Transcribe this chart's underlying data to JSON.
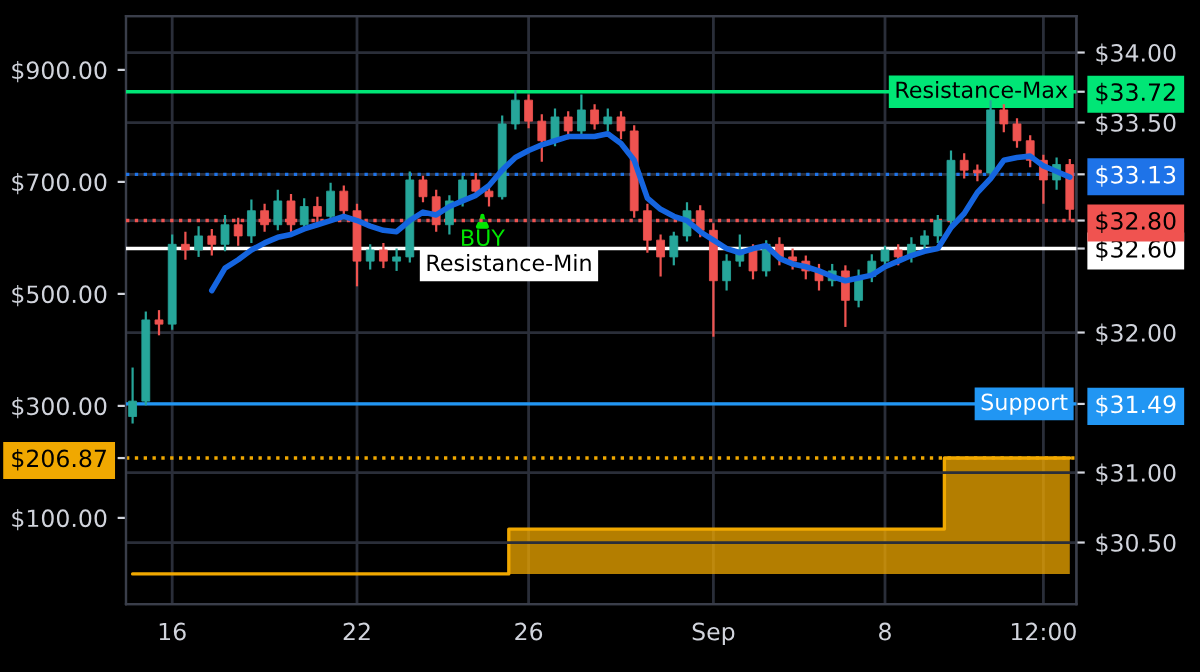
{
  "chart_data": {
    "type": "candlestick",
    "categories": [
      null,
      null,
      null,
      "16",
      null,
      null,
      null,
      null,
      null,
      null,
      null,
      null,
      null,
      null,
      null,
      null,
      null,
      "22",
      null,
      null,
      null,
      null,
      null,
      null,
      null,
      null,
      null,
      null,
      null,
      null,
      "26",
      null,
      null,
      null,
      null,
      null,
      null,
      null,
      null,
      null,
      null,
      null,
      null,
      null,
      "Sep",
      null,
      null,
      null,
      null,
      null,
      null,
      null,
      null,
      null,
      null,
      null,
      null,
      "8",
      null,
      null,
      null,
      null,
      null,
      null,
      null,
      null,
      null,
      null,
      null,
      "12:00",
      null,
      null
    ],
    "ylim": [
      -54,
      996
    ],
    "yticks": [
      {
        "value": 100,
        "label": "$100.00"
      },
      {
        "value": 206.87,
        "label": "$206.87"
      },
      {
        "value": 300,
        "label": "$300.00"
      },
      {
        "value": 500,
        "label": "$500.00"
      },
      {
        "value": 700,
        "label": "$700.00"
      },
      {
        "value": 900,
        "label": "$900.00"
      }
    ],
    "y2lim": [
      30.06,
      34.26
    ],
    "y2ticks": [
      {
        "value": 30.5,
        "label": "$30.50"
      },
      {
        "value": 31.0,
        "label": "$31.00"
      },
      {
        "value": 31.49,
        "label": "$31.49"
      },
      {
        "value": 32.0,
        "label": "$32.00"
      },
      {
        "value": 32.6,
        "label": "$32.60"
      },
      {
        "value": 32.8,
        "label": "$32.80"
      },
      {
        "value": 33.13,
        "label": "$33.13"
      },
      {
        "value": 33.5,
        "label": "$33.50"
      },
      {
        "value": 33.72,
        "label": "$33.72"
      },
      {
        "value": 34.0,
        "label": "$34.00"
      }
    ],
    "grid": true,
    "series": [
      {
        "type": "step",
        "axis": "y",
        "color": "#f0a800",
        "values": [
          0,
          0,
          0,
          0,
          0,
          0,
          0,
          0,
          0,
          0,
          0,
          0,
          0,
          0,
          0,
          0,
          0,
          0,
          0,
          0,
          0,
          0,
          0,
          0,
          0,
          0,
          0,
          0,
          0,
          80,
          80,
          80,
          80,
          80,
          80,
          80,
          80,
          80,
          80,
          80,
          80,
          80,
          80,
          80,
          80,
          80,
          80,
          80,
          80,
          80,
          80,
          80,
          80,
          80,
          80,
          80,
          80,
          80,
          80,
          80,
          80,
          80,
          206.87,
          206.87,
          206.87,
          206.87,
          206.87,
          206.87,
          206.87,
          206.87,
          206.87,
          206.87
        ]
      },
      {
        "type": "candlestick",
        "axis": "y2",
        "ohlc": [
          [
            31.4,
            31.75,
            31.35,
            31.51
          ],
          [
            31.51,
            32.15,
            31.48,
            32.09
          ],
          [
            32.09,
            32.16,
            31.98,
            32.06
          ],
          [
            32.06,
            32.7,
            32.02,
            32.63
          ],
          [
            32.63,
            32.72,
            32.52,
            32.59
          ],
          [
            32.59,
            32.76,
            32.54,
            32.69
          ],
          [
            32.69,
            32.74,
            32.55,
            32.63
          ],
          [
            32.63,
            32.84,
            32.58,
            32.77
          ],
          [
            32.77,
            32.82,
            32.62,
            32.69
          ],
          [
            32.69,
            32.95,
            32.64,
            32.87
          ],
          [
            32.87,
            32.92,
            32.72,
            32.77
          ],
          [
            32.77,
            33.02,
            32.73,
            32.94
          ],
          [
            32.94,
            32.99,
            32.7,
            32.77
          ],
          [
            32.77,
            32.96,
            32.74,
            32.9
          ],
          [
            32.9,
            32.97,
            32.78,
            32.83
          ],
          [
            32.83,
            33.07,
            32.8,
            33.01
          ],
          [
            33.01,
            33.05,
            32.84,
            32.87
          ],
          [
            32.87,
            32.92,
            32.33,
            32.51
          ],
          [
            32.51,
            32.63,
            32.45,
            32.59
          ],
          [
            32.59,
            32.64,
            32.46,
            32.51
          ],
          [
            32.51,
            32.6,
            32.44,
            32.54
          ],
          [
            32.54,
            33.15,
            32.5,
            33.09
          ],
          [
            33.09,
            33.12,
            32.93,
            32.97
          ],
          [
            32.97,
            33.02,
            32.72,
            32.77
          ],
          [
            32.77,
            32.98,
            32.7,
            32.94
          ],
          [
            32.94,
            33.12,
            32.9,
            33.09
          ],
          [
            33.09,
            33.14,
            32.97,
            33.01
          ],
          [
            33.01,
            33.06,
            32.9,
            32.97
          ],
          [
            32.97,
            33.55,
            32.95,
            33.49
          ],
          [
            33.49,
            33.73,
            33.45,
            33.66
          ],
          [
            33.66,
            33.7,
            33.46,
            33.51
          ],
          [
            33.51,
            33.56,
            33.22,
            33.37
          ],
          [
            33.37,
            33.6,
            33.33,
            33.54
          ],
          [
            33.54,
            33.58,
            33.38,
            33.44
          ],
          [
            33.44,
            33.7,
            33.4,
            33.59
          ],
          [
            33.59,
            33.63,
            33.45,
            33.49
          ],
          [
            33.49,
            33.6,
            33.44,
            33.54
          ],
          [
            33.54,
            33.58,
            33.38,
            33.44
          ],
          [
            33.44,
            33.48,
            32.82,
            32.87
          ],
          [
            32.87,
            32.92,
            32.57,
            32.66
          ],
          [
            32.66,
            32.7,
            32.4,
            32.54
          ],
          [
            32.54,
            32.72,
            32.48,
            32.69
          ],
          [
            32.69,
            32.93,
            32.65,
            32.87
          ],
          [
            32.87,
            32.91,
            32.68,
            32.73
          ],
          [
            32.73,
            32.78,
            31.97,
            32.37
          ],
          [
            32.37,
            32.56,
            32.3,
            32.51
          ],
          [
            32.51,
            32.7,
            32.47,
            32.59
          ],
          [
            32.59,
            32.63,
            32.38,
            32.44
          ],
          [
            32.44,
            32.66,
            32.4,
            32.63
          ],
          [
            32.63,
            32.68,
            32.48,
            32.54
          ],
          [
            32.54,
            32.6,
            32.45,
            32.51
          ],
          [
            32.51,
            32.55,
            32.38,
            32.44
          ],
          [
            32.44,
            32.49,
            32.3,
            32.37
          ],
          [
            32.37,
            32.49,
            32.33,
            32.44
          ],
          [
            32.44,
            32.48,
            32.04,
            32.23
          ],
          [
            32.23,
            32.45,
            32.18,
            32.4
          ],
          [
            32.4,
            32.56,
            32.36,
            32.51
          ],
          [
            32.51,
            32.62,
            32.47,
            32.59
          ],
          [
            32.59,
            32.63,
            32.48,
            32.54
          ],
          [
            32.54,
            32.68,
            32.5,
            32.63
          ],
          [
            32.63,
            32.73,
            32.58,
            32.69
          ],
          [
            32.69,
            32.84,
            32.64,
            32.8
          ],
          [
            32.8,
            33.3,
            32.76,
            33.23
          ],
          [
            33.23,
            33.28,
            33.1,
            33.16
          ],
          [
            33.16,
            33.2,
            33.08,
            33.14
          ],
          [
            33.14,
            33.66,
            33.1,
            33.59
          ],
          [
            33.59,
            33.63,
            33.43,
            33.49
          ],
          [
            33.49,
            33.53,
            33.32,
            33.37
          ],
          [
            33.37,
            33.41,
            33.18,
            33.23
          ],
          [
            33.23,
            33.27,
            32.92,
            33.09
          ],
          [
            33.09,
            33.25,
            33.02,
            33.2
          ],
          [
            33.2,
            33.24,
            32.8,
            32.88
          ]
        ]
      },
      {
        "type": "line",
        "axis": "y2",
        "color": "#1565e0",
        "values": [
          null,
          null,
          null,
          null,
          null,
          null,
          32.3,
          32.46,
          32.52,
          32.59,
          32.64,
          32.68,
          32.7,
          32.74,
          32.77,
          32.8,
          32.83,
          32.8,
          32.76,
          32.73,
          32.72,
          32.8,
          32.86,
          32.84,
          32.9,
          32.94,
          32.98,
          33.05,
          33.16,
          33.25,
          33.3,
          33.34,
          33.37,
          33.4,
          33.4,
          33.4,
          33.42,
          33.35,
          33.23,
          32.96,
          32.88,
          32.83,
          32.8,
          32.72,
          32.66,
          32.6,
          32.57,
          32.6,
          32.62,
          32.53,
          32.49,
          32.47,
          32.44,
          32.4,
          32.37,
          32.39,
          32.41,
          32.47,
          32.51,
          32.55,
          32.58,
          32.6,
          32.75,
          32.85,
          33.0,
          33.1,
          33.23,
          33.25,
          33.26,
          33.19,
          33.15,
          33.11
        ]
      }
    ],
    "ref_lines": [
      {
        "axis": "y2",
        "value": 33.72,
        "label": "Resistance-Max",
        "color": "#00e676",
        "line_style": "solid"
      },
      {
        "axis": "y2",
        "value": 33.13,
        "color": "#1e73e8",
        "line_style": "dotted"
      },
      {
        "axis": "y2",
        "value": 32.8,
        "color": "#f05350",
        "line_style": "dotted"
      },
      {
        "axis": "y2",
        "value": 32.6,
        "label": "Resistance-Min",
        "color": "#ffffff",
        "line_style": "solid"
      },
      {
        "axis": "y2",
        "value": 31.49,
        "label": "Support",
        "color": "#2196f3",
        "line_style": "solid"
      },
      {
        "axis": "y",
        "value": 206.87,
        "color": "#f0a800",
        "line_style": "dotted"
      }
    ],
    "annotations": [
      "BUY"
    ]
  }
}
